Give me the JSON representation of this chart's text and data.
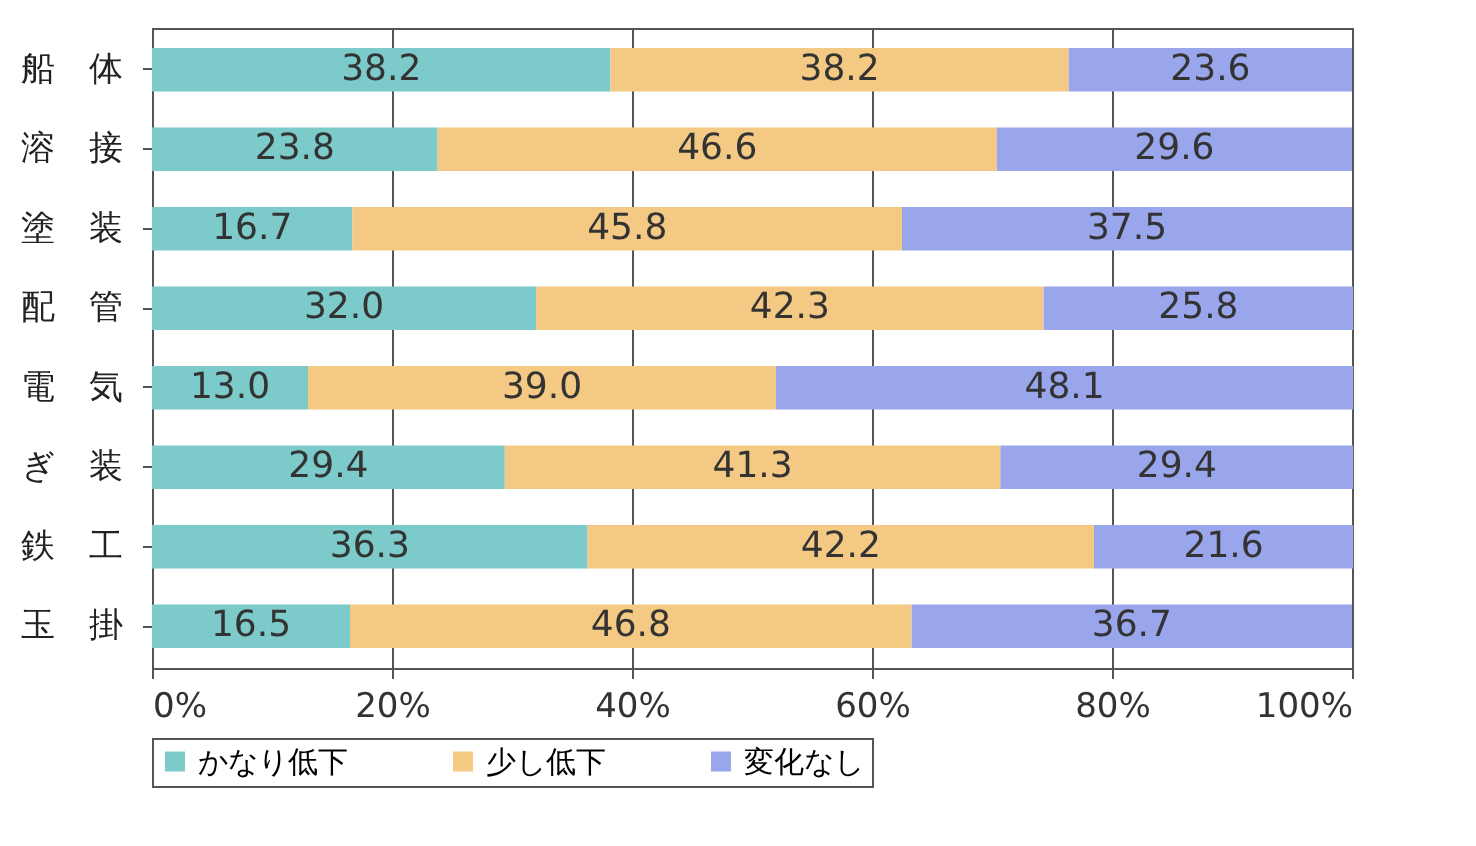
{
  "chart_data": {
    "type": "bar",
    "orientation": "horizontal",
    "stacked": true,
    "grid": "x",
    "legend": "bottom",
    "categories": [
      "船　体",
      "溶　接",
      "塗　装",
      "配　管",
      "電　気",
      "ぎ　装",
      "鉄　工",
      "玉　掛"
    ],
    "series": [
      {
        "name": "かなり低下",
        "color": "#7ccaca",
        "values": [
          38.2,
          23.8,
          16.7,
          32.0,
          13.0,
          29.4,
          36.3,
          16.5
        ],
        "value_labels": [
          "38.2",
          "23.8",
          "16.7",
          "32.0",
          "13.0",
          "29.4",
          "36.3",
          "16.5"
        ]
      },
      {
        "name": "少し低下",
        "color": "#f3c983",
        "values": [
          38.2,
          46.6,
          45.8,
          42.3,
          39.0,
          41.3,
          42.2,
          46.8
        ],
        "value_labels": [
          "38.2",
          "46.6",
          "45.8",
          "42.3",
          "39.0",
          "41.3",
          "42.2",
          "46.8"
        ]
      },
      {
        "name": "変化なし",
        "color": "#9aa6ec",
        "values": [
          23.6,
          29.6,
          37.5,
          25.8,
          48.1,
          29.4,
          21.6,
          36.7
        ],
        "value_labels": [
          "23.6",
          "29.6",
          "37.5",
          "25.8",
          "48.1",
          "29.4",
          "21.6",
          "36.7"
        ]
      }
    ],
    "xlim": [
      0,
      100
    ],
    "xticks": [
      {
        "value": 0,
        "label": "0%"
      },
      {
        "value": 20,
        "label": "20%"
      },
      {
        "value": 40,
        "label": "40%"
      },
      {
        "value": 60,
        "label": "60%"
      },
      {
        "value": 80,
        "label": "80%"
      },
      {
        "value": 100,
        "label": "100%"
      }
    ]
  }
}
